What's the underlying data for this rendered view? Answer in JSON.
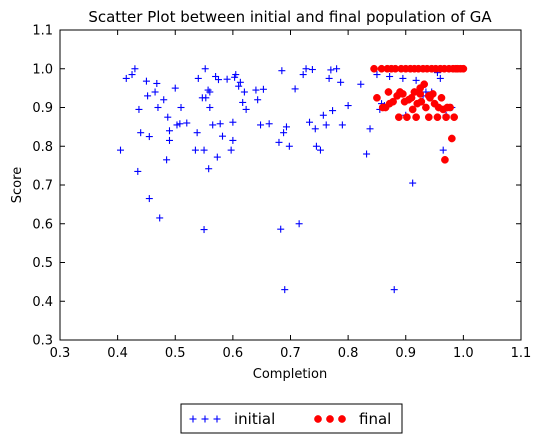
{
  "chart_data": {
    "type": "scatter",
    "title": "Scatter Plot between initial and final population of GA",
    "xlabel": "Completion",
    "ylabel": "Score",
    "xlim": [
      0.3,
      1.1
    ],
    "ylim": [
      0.3,
      1.1
    ],
    "xticks": [
      "0.3",
      "0.4",
      "0.5",
      "0.6",
      "0.7",
      "0.8",
      "0.9",
      "1.0",
      "1.1"
    ],
    "yticks": [
      "0.3",
      "0.4",
      "0.5",
      "0.6",
      "0.7",
      "0.8",
      "0.9",
      "1.0",
      "1.1"
    ],
    "grid": false,
    "legend": "bottom-center, outside",
    "series": [
      {
        "name": "initial",
        "marker": "plus",
        "color": "#0000ff",
        "points": [
          [
            0.405,
            0.79
          ],
          [
            0.415,
            0.975
          ],
          [
            0.425,
            0.985
          ],
          [
            0.43,
            1.0
          ],
          [
            0.435,
            0.735
          ],
          [
            0.437,
            0.895
          ],
          [
            0.44,
            0.835
          ],
          [
            0.45,
            0.968
          ],
          [
            0.452,
            0.93
          ],
          [
            0.455,
            0.825
          ],
          [
            0.455,
            0.665
          ],
          [
            0.465,
            0.94
          ],
          [
            0.468,
            0.962
          ],
          [
            0.47,
            0.9
          ],
          [
            0.473,
            0.615
          ],
          [
            0.48,
            0.92
          ],
          [
            0.485,
            0.765
          ],
          [
            0.487,
            0.875
          ],
          [
            0.49,
            0.815
          ],
          [
            0.49,
            0.84
          ],
          [
            0.5,
            0.95
          ],
          [
            0.503,
            0.855
          ],
          [
            0.508,
            0.858
          ],
          [
            0.51,
            0.9
          ],
          [
            0.52,
            0.86
          ],
          [
            0.535,
            0.79
          ],
          [
            0.538,
            0.835
          ],
          [
            0.54,
            0.975
          ],
          [
            0.547,
            0.925
          ],
          [
            0.55,
            0.585
          ],
          [
            0.55,
            0.79
          ],
          [
            0.552,
            1.0
          ],
          [
            0.553,
            0.925
          ],
          [
            0.557,
            0.945
          ],
          [
            0.558,
            0.742
          ],
          [
            0.56,
            0.94
          ],
          [
            0.56,
            0.9
          ],
          [
            0.565,
            0.855
          ],
          [
            0.57,
            0.98
          ],
          [
            0.573,
            0.772
          ],
          [
            0.575,
            0.972
          ],
          [
            0.578,
            0.858
          ],
          [
            0.582,
            0.826
          ],
          [
            0.59,
            0.973
          ],
          [
            0.597,
            0.79
          ],
          [
            0.6,
            0.815
          ],
          [
            0.6,
            0.862
          ],
          [
            0.603,
            0.978
          ],
          [
            0.605,
            0.985
          ],
          [
            0.61,
            0.955
          ],
          [
            0.613,
            0.965
          ],
          [
            0.617,
            0.913
          ],
          [
            0.62,
            0.94
          ],
          [
            0.623,
            0.895
          ],
          [
            0.64,
            0.945
          ],
          [
            0.643,
            0.92
          ],
          [
            0.648,
            0.855
          ],
          [
            0.653,
            0.947
          ],
          [
            0.663,
            0.858
          ],
          [
            0.68,
            0.81
          ],
          [
            0.683,
            0.586
          ],
          [
            0.685,
            0.995
          ],
          [
            0.688,
            0.835
          ],
          [
            0.69,
            0.43
          ],
          [
            0.693,
            0.85
          ],
          [
            0.698,
            0.8
          ],
          [
            0.708,
            0.948
          ],
          [
            0.715,
            0.6
          ],
          [
            0.722,
            0.985
          ],
          [
            0.727,
            1.0
          ],
          [
            0.733,
            0.862
          ],
          [
            0.738,
            0.998
          ],
          [
            0.743,
            0.845
          ],
          [
            0.745,
            0.8
          ],
          [
            0.752,
            0.79
          ],
          [
            0.757,
            0.88
          ],
          [
            0.762,
            0.855
          ],
          [
            0.767,
            0.975
          ],
          [
            0.77,
            0.997
          ],
          [
            0.773,
            0.892
          ],
          [
            0.78,
            1.0
          ],
          [
            0.787,
            0.965
          ],
          [
            0.79,
            0.855
          ],
          [
            0.8,
            0.905
          ],
          [
            0.822,
            0.96
          ],
          [
            0.832,
            0.78
          ],
          [
            0.838,
            0.845
          ],
          [
            0.85,
            0.985
          ],
          [
            0.855,
            0.895
          ],
          [
            0.858,
            0.91
          ],
          [
            0.863,
            0.905
          ],
          [
            0.872,
            0.98
          ],
          [
            0.88,
            0.43
          ],
          [
            0.895,
            0.975
          ],
          [
            0.9,
            0.88
          ],
          [
            0.912,
            0.705
          ],
          [
            0.918,
            0.97
          ],
          [
            0.93,
            0.93
          ],
          [
            0.935,
            0.94
          ],
          [
            0.945,
            0.94
          ],
          [
            0.955,
            0.99
          ],
          [
            0.96,
            0.975
          ],
          [
            0.965,
            0.79
          ],
          [
            0.97,
            0.88
          ],
          [
            0.98,
            0.9
          ]
        ]
      },
      {
        "name": "final",
        "marker": "circle",
        "color": "#ff0000",
        "points": [
          [
            0.845,
            1.0
          ],
          [
            0.85,
            0.925
          ],
          [
            0.858,
            1.0
          ],
          [
            0.86,
            0.9
          ],
          [
            0.865,
            0.9
          ],
          [
            0.868,
            1.0
          ],
          [
            0.87,
            0.94
          ],
          [
            0.872,
            0.91
          ],
          [
            0.875,
            1.0
          ],
          [
            0.878,
            0.915
          ],
          [
            0.882,
            1.0
          ],
          [
            0.885,
            0.93
          ],
          [
            0.888,
            0.875
          ],
          [
            0.89,
            0.94
          ],
          [
            0.892,
            1.0
          ],
          [
            0.895,
            0.935
          ],
          [
            0.898,
            0.915
          ],
          [
            0.9,
            1.0
          ],
          [
            0.902,
            0.875
          ],
          [
            0.905,
            0.92
          ],
          [
            0.908,
            1.0
          ],
          [
            0.91,
            0.925
          ],
          [
            0.912,
            0.895
          ],
          [
            0.915,
            1.0
          ],
          [
            0.918,
            0.875
          ],
          [
            0.92,
            0.91
          ],
          [
            0.922,
            1.0
          ],
          [
            0.925,
            0.935
          ],
          [
            0.927,
            0.915
          ],
          [
            0.93,
            1.0
          ],
          [
            0.932,
            0.96
          ],
          [
            0.935,
            0.9
          ],
          [
            0.937,
            1.0
          ],
          [
            0.94,
            0.875
          ],
          [
            0.942,
            0.925
          ],
          [
            0.945,
            1.0
          ],
          [
            0.947,
            0.935
          ],
          [
            0.95,
            0.91
          ],
          [
            0.952,
            1.0
          ],
          [
            0.955,
            0.875
          ],
          [
            0.957,
            0.9
          ],
          [
            0.96,
            1.0
          ],
          [
            0.962,
            0.925
          ],
          [
            0.965,
            0.895
          ],
          [
            0.967,
            1.0
          ],
          [
            0.968,
            0.765
          ],
          [
            0.97,
            0.875
          ],
          [
            0.972,
            0.9
          ],
          [
            0.975,
            1.0
          ],
          [
            0.977,
            0.9
          ],
          [
            0.98,
            0.82
          ],
          [
            0.982,
            1.0
          ],
          [
            0.984,
            0.875
          ],
          [
            0.987,
            1.0
          ],
          [
            0.99,
            1.0
          ],
          [
            0.995,
            1.0
          ],
          [
            1.0,
            1.0
          ],
          [
            0.94,
            0.93
          ],
          [
            0.925,
            0.95
          ],
          [
            0.915,
            0.94
          ]
        ]
      }
    ]
  }
}
